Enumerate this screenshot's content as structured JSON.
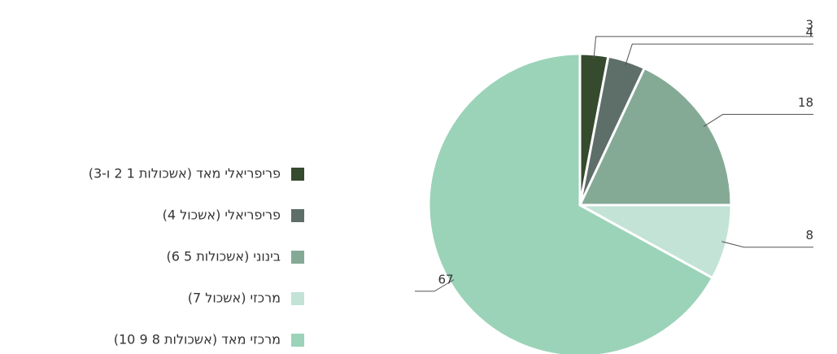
{
  "chart_data": {
    "type": "pie",
    "categories": [
      "פריפריאלי מאד (אשכולות 1 2 ו-3)",
      "פריפריאלי (אשכול 4)",
      "בינוני (אשכולות 5 6)",
      "מרכזי (אשכול 7)",
      "מרכזי מאד (אשכולות 8 9 10)"
    ],
    "values": [
      3,
      4,
      18,
      8,
      67
    ],
    "colors": [
      "#364a2e",
      "#5e6e68",
      "#84aa96",
      "#c2e3d6",
      "#9bd3b8"
    ],
    "legend": "left"
  }
}
